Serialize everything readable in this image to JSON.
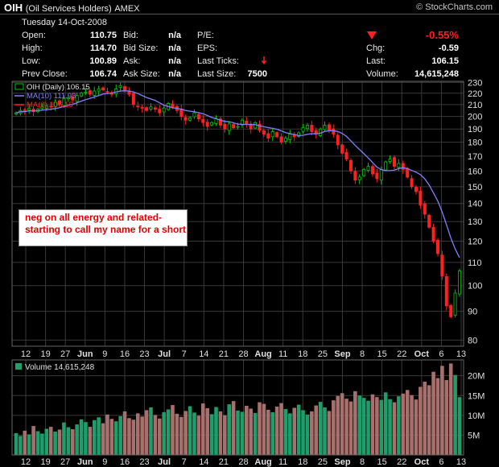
{
  "header": {
    "symbol": "OIH",
    "name": "(Oil Services Holders)",
    "exchange": "AMEX",
    "brand": "© StockCharts.com",
    "date": "Tuesday 14-Oct-2008",
    "change_pct": "-0.55%",
    "change_direction_icon": "down-triangle-icon",
    "last_tick_icon": "down-arrow-icon",
    "fields": {
      "open_label": "Open:",
      "open": "110.75",
      "high_label": "High:",
      "high": "114.70",
      "low_label": "Low:",
      "low": "100.89",
      "prev_label": "Prev Close:",
      "prev": "106.74",
      "bid_label": "Bid:",
      "bid": "n/a",
      "bidsize_label": "Bid Size:",
      "bidsize": "n/a",
      "ask_label": "Ask:",
      "ask": "n/a",
      "asksize_label": "Ask Size:",
      "asksize": "n/a",
      "pe_label": "P/E:",
      "eps_label": "EPS:",
      "lastticks_label": "Last Ticks:",
      "lastsize_label": "Last Size:",
      "lastsize": "7500",
      "chg_label": "Chg:",
      "chg": "-0.59",
      "last_label": "Last:",
      "last": "106.15",
      "volume_label": "Volume:",
      "volume": "14,615,248"
    }
  },
  "annotation": "neg on all energy and related-starting to call my name for a short",
  "colors": {
    "up": "#00c800",
    "down": "#ff2020",
    "ma10": "#8080ff",
    "vol_up": "#1e9e6a",
    "vol_down": "#a8706c",
    "grid": "#3a3a3a"
  },
  "chart_data": [
    {
      "type": "candlestick",
      "legend": [
        "OIH (Daily) 106.15",
        "MA(10) 111.93",
        "MA(0) 106.15"
      ],
      "y_ticks": [
        80,
        90,
        100,
        110,
        120,
        130,
        140,
        150,
        160,
        170,
        180,
        190,
        200,
        210,
        220,
        230
      ],
      "y_scale": "log",
      "ylim": [
        78,
        231
      ],
      "x_tick_labels": [
        "12",
        "19",
        "27",
        "Jun",
        "9",
        "16",
        "23",
        "Jul",
        "7",
        "14",
        "21",
        "28",
        "Aug",
        "11",
        "18",
        "25",
        "Sep",
        "8",
        "15",
        "22",
        "Oct",
        "6",
        "13"
      ],
      "close": [
        203,
        205,
        204,
        207,
        204,
        206,
        208,
        209,
        208,
        212,
        210,
        215,
        216,
        214,
        218,
        220,
        221,
        219,
        222,
        224,
        223,
        221,
        219,
        224,
        227,
        222,
        219,
        210,
        208,
        207,
        205,
        208,
        206,
        203,
        207,
        211,
        208,
        205,
        200,
        197,
        199,
        203,
        198,
        195,
        192,
        195,
        198,
        193,
        190,
        194,
        191,
        192,
        197,
        194,
        190,
        195,
        189,
        186,
        183,
        188,
        184,
        180,
        183,
        186,
        184,
        187,
        191,
        193,
        188,
        186,
        190,
        193,
        189,
        186,
        178,
        172,
        168,
        160,
        154,
        156,
        161,
        163,
        158,
        155,
        161,
        166,
        168,
        163,
        165,
        161,
        156,
        150,
        147,
        139,
        134,
        127,
        120,
        114,
        104,
        92,
        88,
        97,
        106.15
      ],
      "volume_m": [
        5.5,
        4.8,
        6.1,
        5.2,
        7.3,
        6.0,
        5.4,
        6.6,
        7.1,
        5.9,
        6.4,
        8.2,
        7.0,
        6.5,
        7.7,
        9.0,
        8.3,
        7.1,
        8.8,
        9.5,
        8.0,
        10.2,
        9.1,
        8.5,
        9.8,
        11.0,
        9.3,
        8.9,
        10.5,
        9.7,
        11.3,
        12.0,
        10.1,
        9.2,
        10.8,
        11.5,
        12.6,
        10.4,
        9.6,
        11.1,
        12.3,
        10.7,
        9.9,
        13.0,
        11.8,
        10.3,
        12.1,
        11.0,
        10.0,
        12.8,
        13.6,
        11.2,
        10.9,
        12.4,
        11.7,
        10.6,
        13.3,
        12.9,
        11.4,
        10.8,
        12.2,
        13.1,
        11.6,
        10.5,
        11.9,
        12.7,
        11.3,
        10.2,
        11.0,
        12.5,
        13.4,
        12.0,
        11.1,
        13.8,
        14.9,
        15.6,
        14.2,
        13.5,
        16.1,
        15.0,
        14.4,
        13.7,
        15.3,
        14.6,
        13.9,
        15.8,
        14.1,
        13.3,
        14.8,
        15.5,
        16.4,
        15.1,
        14.0,
        17.2,
        18.5,
        17.6,
        21.0,
        19.4,
        22.5,
        18.9,
        23.1,
        20.2,
        14.6
      ]
    },
    {
      "type": "bar",
      "legend": "Volume 14,615,248",
      "y_ticks": [
        "5M",
        "10M",
        "15M",
        "20M"
      ]
    }
  ]
}
